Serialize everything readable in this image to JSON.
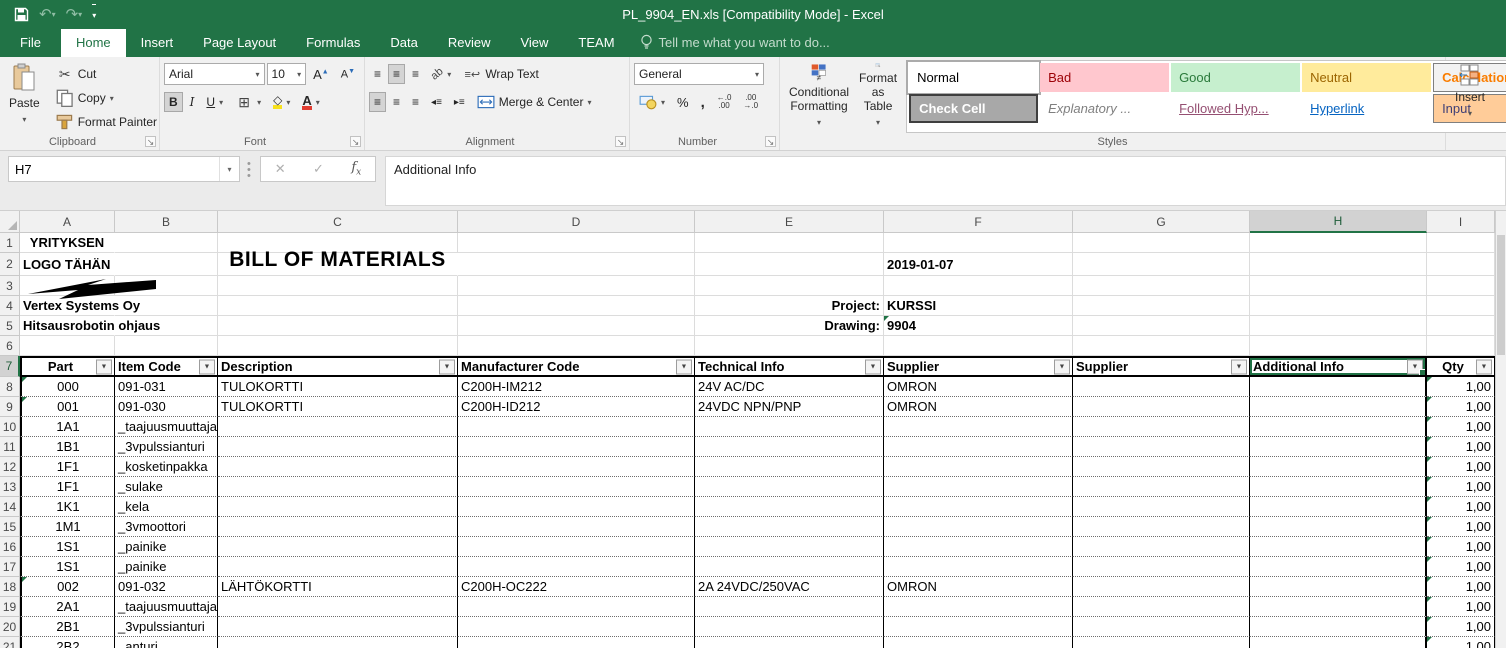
{
  "colors": {
    "accent_green": "#217346",
    "grid_line": "#dcdcdc",
    "table_border": "#000000",
    "flag_green": "#217346",
    "bad_bg": "#ffc7ce",
    "good_bg": "#c6efce",
    "neutral_bg": "#ffeb9c",
    "input_bg": "#ffcc99"
  },
  "titlebar": {
    "title": "PL_9904_EN.xls  [Compatibility Mode] - Excel"
  },
  "tabs": [
    "File",
    "Home",
    "Insert",
    "Page Layout",
    "Formulas",
    "Data",
    "Review",
    "View",
    "TEAM"
  ],
  "tellme": "Tell me what you want to do...",
  "ribbon": {
    "clipboard": {
      "label": "Clipboard",
      "paste": "Paste",
      "cut": "Cut",
      "copy": "Copy",
      "format_painter": "Format Painter"
    },
    "font": {
      "label": "Font",
      "family": "Arial",
      "size": "10",
      "bold": "B",
      "italic": "I",
      "underline": "U"
    },
    "alignment": {
      "label": "Alignment",
      "wrap": "Wrap Text",
      "merge": "Merge & Center"
    },
    "number": {
      "label": "Number",
      "format": "General"
    },
    "styles": {
      "label": "Styles",
      "conditional": "Conditional Formatting",
      "format_table": "Format as Table",
      "items": [
        {
          "label": "Normal"
        },
        {
          "label": "Bad"
        },
        {
          "label": "Good"
        },
        {
          "label": "Neutral"
        },
        {
          "label": "Calculation"
        },
        {
          "label": "Check Cell"
        },
        {
          "label": "Explanatory ..."
        },
        {
          "label": "Followed Hyp..."
        },
        {
          "label": "Hyperlink"
        },
        {
          "label": "Input"
        }
      ]
    },
    "cells": {
      "insert": "Insert"
    }
  },
  "formula_bar": {
    "name_box": "H7",
    "value": "Additional Info"
  },
  "sheet": {
    "columns": [
      "A",
      "B",
      "C",
      "D",
      "E",
      "F",
      "G",
      "H",
      "I"
    ],
    "selected_cell": "H7",
    "selected_column": "H",
    "selected_row": 7,
    "plain_rows": [
      {
        "n": 1,
        "cells": {
          "A": {
            "t": "YRITYKSEN",
            "b": true,
            "al": "c",
            "ov": true
          }
        }
      },
      {
        "n": 2,
        "h": 23,
        "cells": {
          "A": {
            "t": "LOGO TÄHÄN",
            "b": true,
            "ov": true
          },
          "C": {
            "t": "BILL OF MATERIALS",
            "b": true,
            "big": true,
            "ov": true
          },
          "F": {
            "t": "2019-01-07",
            "b": true
          }
        }
      },
      {
        "n": 3,
        "cells": {}
      },
      {
        "n": 4,
        "cells": {
          "A": {
            "t": "Vertex Systems Oy",
            "b": true,
            "ov": true
          },
          "E": {
            "t": "Project:",
            "b": true,
            "al": "r"
          },
          "F": {
            "t": "KURSSI",
            "b": true
          }
        }
      },
      {
        "n": 5,
        "cells": {
          "A": {
            "t": "Hitsausrobotin ohjaus",
            "b": true,
            "ov": true
          },
          "E": {
            "t": "Drawing:",
            "b": true,
            "al": "r"
          },
          "F": {
            "t": "9904",
            "b": true,
            "flag": true
          }
        }
      },
      {
        "n": 6,
        "cells": {}
      }
    ],
    "header_row": {
      "n": 7,
      "cells": [
        "Part",
        "Item Code",
        "Description",
        "Manufacturer Code",
        "Technical Info",
        "Supplier",
        "Supplier",
        "Additional Info",
        "Qty"
      ]
    },
    "data_rows": [
      {
        "n": 8,
        "cells": [
          "000",
          "091-031",
          "TULOKORTTI",
          "C200H-IM212",
          "24V AC/DC",
          "OMRON",
          "",
          "",
          "1,00"
        ],
        "flags": [
          "A",
          "I"
        ]
      },
      {
        "n": 9,
        "cells": [
          "001",
          "091-030",
          "TULOKORTTI",
          "C200H-ID212",
          "24VDC NPN/PNP",
          "OMRON",
          "",
          "",
          "1,00"
        ],
        "flags": [
          "A",
          "I"
        ]
      },
      {
        "n": 10,
        "cells": [
          "1A1",
          "_taajuusmuuttaja",
          "",
          "",
          "",
          "",
          "",
          "",
          "1,00"
        ],
        "flags": [
          "I"
        ]
      },
      {
        "n": 11,
        "cells": [
          "1B1",
          "_3vpulssianturi",
          "",
          "",
          "",
          "",
          "",
          "",
          "1,00"
        ],
        "flags": [
          "I"
        ]
      },
      {
        "n": 12,
        "cells": [
          "1F1",
          "_kosketinpakka",
          "",
          "",
          "",
          "",
          "",
          "",
          "1,00"
        ],
        "flags": [
          "I"
        ]
      },
      {
        "n": 13,
        "cells": [
          "1F1",
          "_sulake",
          "",
          "",
          "",
          "",
          "",
          "",
          "1,00"
        ],
        "flags": [
          "I"
        ]
      },
      {
        "n": 14,
        "cells": [
          "1K1",
          "_kela",
          "",
          "",
          "",
          "",
          "",
          "",
          "1,00"
        ],
        "flags": [
          "I"
        ]
      },
      {
        "n": 15,
        "cells": [
          "1M1",
          "_3vmoottori",
          "",
          "",
          "",
          "",
          "",
          "",
          "1,00"
        ],
        "flags": [
          "I"
        ]
      },
      {
        "n": 16,
        "cells": [
          "1S1",
          "_painike",
          "",
          "",
          "",
          "",
          "",
          "",
          "1,00"
        ],
        "flags": [
          "I"
        ]
      },
      {
        "n": 17,
        "cells": [
          "1S1",
          "_painike",
          "",
          "",
          "",
          "",
          "",
          "",
          "1,00"
        ],
        "flags": [
          "I"
        ]
      },
      {
        "n": 18,
        "cells": [
          "002",
          "091-032",
          "LÄHTÖKORTTI",
          "C200H-OC222",
          "2A 24VDC/250VAC",
          "OMRON",
          "",
          "",
          "1,00"
        ],
        "flags": [
          "A",
          "I"
        ]
      },
      {
        "n": 19,
        "cells": [
          "2A1",
          "_taajuusmuuttaja",
          "",
          "",
          "",
          "",
          "",
          "",
          "1,00"
        ],
        "flags": [
          "I"
        ]
      },
      {
        "n": 20,
        "cells": [
          "2B1",
          "_3vpulssianturi",
          "",
          "",
          "",
          "",
          "",
          "",
          "1,00"
        ],
        "flags": [
          "I"
        ]
      },
      {
        "n": 21,
        "cells": [
          "2B2",
          "_anturi",
          "",
          "",
          "",
          "",
          "",
          "",
          "1,00"
        ],
        "flags": [
          "I"
        ]
      }
    ]
  }
}
